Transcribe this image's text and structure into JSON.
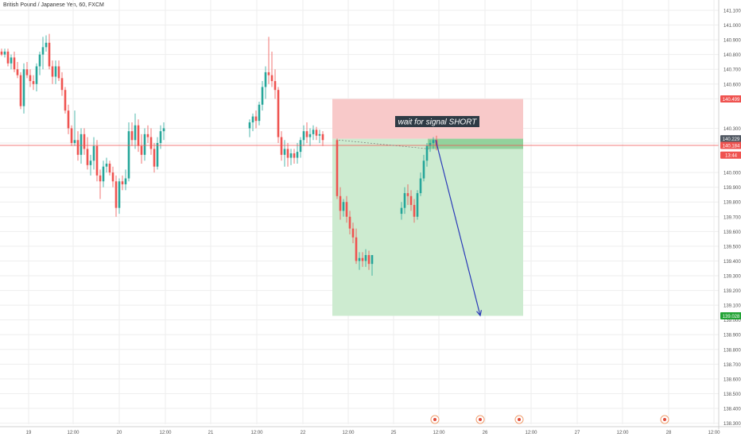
{
  "header": {
    "title": "British Pound / Japanese Yen, 60, FXCM"
  },
  "colors": {
    "up": "#26a69a",
    "down": "#ef5350",
    "grid": "#eeeeee",
    "stop_zone": "#f8c9c9",
    "target_zone": "#cdebd0",
    "entry_zone": "#92d29c",
    "arrow": "#2b3bb8",
    "current_line": "#ef5350",
    "axis_text": "#555555",
    "annotation_bg": "#2f3b45"
  },
  "chart_data": {
    "type": "candlestick",
    "instrument": "British Pound / Japanese Yen",
    "timeframe": "60",
    "source": "FXCM",
    "ylim": [
      138.26,
      141.17
    ],
    "y_ticks": [
      "141.100",
      "141.000",
      "140.900",
      "140.800",
      "140.700",
      "140.600",
      "140.500",
      "140.300",
      "140.200",
      "140.000",
      "139.900",
      "139.800",
      "139.700",
      "139.600",
      "139.500",
      "139.400",
      "139.300",
      "139.200",
      "139.100",
      "139.000",
      "138.900",
      "138.800",
      "138.700",
      "138.600",
      "138.500",
      "138.400",
      "138.300"
    ],
    "x_ticks": [
      "19",
      "12:00",
      "20",
      "12:00",
      "21",
      "12:00",
      "22",
      "12:00",
      "25",
      "12:00",
      "26",
      "12:00",
      "27",
      "12:00",
      "28",
      "12:00"
    ],
    "price_labels": [
      {
        "label": "140.499",
        "value": 140.499,
        "color": "#ef5350"
      },
      {
        "label": "140.229",
        "value": 140.229,
        "color": "#505862"
      },
      {
        "label": "140.184",
        "value": 140.184,
        "color": "#ef5350"
      },
      {
        "label": "13:44",
        "value": 140.118,
        "color": "#ef5350"
      },
      {
        "label": "139.028",
        "value": 139.028,
        "color": "#22a335"
      }
    ],
    "current_price": 140.184,
    "position": {
      "entry": 140.229,
      "stop": 140.499,
      "target": 139.028,
      "annotation": "wait for signal SHORT"
    },
    "projection": {
      "from_price": 140.22,
      "to_price": 139.03
    },
    "candles_window_1": [
      [
        140.82,
        140.84,
        140.79,
        140.8
      ],
      [
        140.8,
        140.84,
        140.78,
        140.82
      ],
      [
        140.82,
        140.84,
        140.72,
        140.74
      ],
      [
        140.74,
        140.8,
        140.7,
        140.78
      ],
      [
        140.78,
        140.82,
        140.68,
        140.7
      ],
      [
        140.7,
        140.75,
        140.64,
        140.66
      ],
      [
        140.66,
        140.68,
        140.43,
        140.45
      ],
      [
        140.45,
        140.74,
        140.4,
        140.7
      ],
      [
        140.7,
        140.75,
        140.64,
        140.66
      ],
      [
        140.66,
        140.7,
        140.58,
        140.62
      ],
      [
        140.62,
        140.66,
        140.56,
        140.6
      ],
      [
        140.6,
        140.74,
        140.55,
        140.72
      ],
      [
        140.72,
        140.82,
        140.66,
        140.8
      ],
      [
        140.8,
        140.92,
        140.7,
        140.85
      ],
      [
        140.85,
        140.93,
        140.82,
        140.88
      ],
      [
        140.88,
        140.94,
        140.7,
        140.72
      ],
      [
        140.72,
        140.76,
        140.6,
        140.65
      ],
      [
        140.65,
        140.76,
        140.6,
        140.72
      ],
      [
        140.72,
        140.76,
        140.62,
        140.64
      ],
      [
        140.64,
        140.68,
        140.52,
        140.56
      ],
      [
        140.56,
        140.58,
        140.4,
        140.42
      ],
      [
        140.42,
        140.46,
        140.26,
        140.3
      ],
      [
        140.3,
        140.32,
        140.18,
        140.2
      ],
      [
        140.2,
        140.42,
        140.18,
        140.22
      ],
      [
        140.22,
        140.28,
        140.08,
        140.12
      ],
      [
        140.12,
        140.3,
        140.06,
        140.26
      ],
      [
        140.26,
        140.3,
        140.12,
        140.16
      ],
      [
        140.16,
        140.24,
        140.02,
        140.05
      ],
      [
        140.05,
        140.12,
        139.98,
        140.08
      ],
      [
        140.08,
        140.24,
        140.02,
        140.18
      ],
      [
        140.18,
        140.22,
        139.94,
        139.98
      ],
      [
        139.98,
        140.02,
        139.82,
        139.94
      ],
      [
        139.94,
        140.08,
        139.9,
        140.04
      ],
      [
        140.04,
        140.1,
        140.0,
        140.06
      ],
      [
        140.06,
        140.08,
        139.98,
        140.0
      ],
      [
        140.0,
        140.04,
        139.9,
        139.94
      ],
      [
        139.94,
        139.98,
        139.7,
        139.76
      ],
      [
        139.76,
        139.96,
        139.72,
        139.94
      ],
      [
        139.94,
        139.98,
        139.88,
        139.92
      ],
      [
        139.92,
        140.02,
        139.88,
        139.96
      ],
      [
        139.96,
        140.34,
        139.94,
        140.28
      ],
      [
        140.28,
        140.34,
        140.18,
        140.22
      ],
      [
        140.22,
        140.4,
        140.16,
        140.32
      ],
      [
        140.32,
        140.36,
        140.14,
        140.18
      ],
      [
        140.18,
        140.26,
        140.06,
        140.12
      ],
      [
        140.12,
        140.3,
        140.08,
        140.26
      ],
      [
        140.26,
        140.32,
        140.2,
        140.24
      ],
      [
        140.24,
        140.3,
        140.12,
        140.16
      ],
      [
        140.16,
        140.2,
        140.0,
        140.04
      ],
      [
        140.04,
        140.24,
        140.02,
        140.2
      ],
      [
        140.2,
        140.32,
        140.16,
        140.28
      ],
      [
        140.28,
        140.34,
        140.22,
        140.3
      ]
    ],
    "candles_window_2": [
      [
        140.3,
        140.36,
        140.24,
        140.34
      ],
      [
        140.34,
        140.4,
        140.28,
        140.38
      ],
      [
        140.38,
        140.42,
        140.3,
        140.35
      ],
      [
        140.35,
        140.48,
        140.32,
        140.46
      ],
      [
        140.46,
        140.62,
        140.42,
        140.58
      ],
      [
        140.58,
        140.72,
        140.5,
        140.68
      ],
      [
        140.68,
        140.92,
        140.6,
        140.66
      ],
      [
        140.66,
        140.82,
        140.58,
        140.62
      ],
      [
        140.62,
        140.7,
        140.5,
        140.56
      ],
      [
        140.56,
        140.58,
        140.2,
        140.24
      ],
      [
        140.24,
        140.28,
        140.08,
        140.12
      ],
      [
        140.12,
        140.22,
        140.04,
        140.16
      ],
      [
        140.16,
        140.2,
        140.04,
        140.1
      ],
      [
        140.1,
        140.16,
        140.05,
        140.13
      ],
      [
        140.13,
        140.16,
        140.06,
        140.1
      ],
      [
        140.1,
        140.2,
        140.06,
        140.14
      ],
      [
        140.14,
        140.24,
        140.1,
        140.22
      ],
      [
        140.22,
        140.32,
        140.18,
        140.28
      ],
      [
        140.28,
        140.34,
        140.2,
        140.24
      ],
      [
        140.24,
        140.3,
        140.18,
        140.26
      ],
      [
        140.26,
        140.32,
        140.22,
        140.29
      ],
      [
        140.29,
        140.31,
        140.22,
        140.25
      ],
      [
        140.25,
        140.29,
        140.2,
        140.26
      ],
      [
        140.26,
        140.28,
        140.18,
        140.22
      ]
    ],
    "candles_window_3": [
      [
        140.22,
        140.23,
        139.82,
        139.84
      ],
      [
        139.84,
        139.9,
        139.68,
        139.74
      ],
      [
        139.74,
        139.82,
        139.7,
        139.8
      ],
      [
        139.8,
        139.84,
        139.66,
        139.7
      ],
      [
        139.7,
        139.74,
        139.58,
        139.62
      ],
      [
        139.62,
        139.66,
        139.52,
        139.56
      ],
      [
        139.56,
        139.62,
        139.38,
        139.4
      ],
      [
        139.4,
        139.46,
        139.34,
        139.42
      ],
      [
        139.42,
        139.46,
        139.36,
        139.4
      ],
      [
        139.4,
        139.48,
        139.36,
        139.44
      ],
      [
        139.44,
        139.47,
        139.34,
        139.38
      ],
      [
        139.38,
        139.44,
        139.3,
        139.44
      ]
    ],
    "candles_window_4": [
      [
        139.72,
        139.8,
        139.68,
        139.76
      ],
      [
        139.76,
        139.9,
        139.72,
        139.86
      ],
      [
        139.86,
        139.92,
        139.78,
        139.84
      ],
      [
        139.84,
        139.88,
        139.74,
        139.78
      ],
      [
        139.78,
        139.82,
        139.66,
        139.7
      ],
      [
        139.7,
        139.88,
        139.68,
        139.86
      ],
      [
        139.86,
        140.0,
        139.84,
        139.96
      ],
      [
        139.96,
        140.12,
        139.94,
        140.08
      ],
      [
        140.08,
        140.2,
        140.04,
        140.18
      ],
      [
        140.18,
        140.22,
        140.14,
        140.2
      ],
      [
        140.2,
        140.24,
        140.16,
        140.22
      ],
      [
        140.22,
        140.25,
        140.15,
        140.18
      ]
    ]
  }
}
